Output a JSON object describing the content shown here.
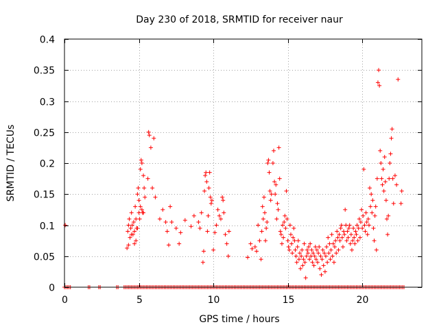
{
  "chart_data": {
    "type": "scatter",
    "title": "Day 230 of 2018, SRMTID for receiver naur",
    "xlabel": "GPS time / hours",
    "ylabel": "SRMTID / TECUs",
    "xlim": [
      0,
      24
    ],
    "ylim": [
      0,
      0.4
    ],
    "xticks": [
      0,
      5,
      10,
      15,
      20
    ],
    "xtick_labels": [
      "0",
      "5",
      "10",
      "15",
      "20"
    ],
    "yticks": [
      0,
      0.05,
      0.1,
      0.15,
      0.2,
      0.25,
      0.3,
      0.35,
      0.4
    ],
    "ytick_labels": [
      "0",
      "0.05",
      "0.1",
      "0.15",
      "0.2",
      "0.25",
      "0.3",
      "0.35",
      "0.4"
    ],
    "grid": true,
    "marker": "+",
    "color": "#ff0000",
    "series": [
      {
        "name": "SRMTID",
        "points": [
          [
            0.05,
            0.1
          ],
          [
            4.2,
            0.063
          ],
          [
            4.25,
            0.09
          ],
          [
            4.3,
            0.1
          ],
          [
            4.35,
            0.11
          ],
          [
            4.4,
            0.08
          ],
          [
            4.45,
            0.095
          ],
          [
            4.5,
            0.12
          ],
          [
            4.55,
            0.1
          ],
          [
            4.6,
            0.085
          ],
          [
            4.65,
            0.105
          ],
          [
            4.7,
            0.09
          ],
          [
            4.75,
            0.13
          ],
          [
            4.8,
            0.075
          ],
          [
            4.85,
            0.095
          ],
          [
            4.9,
            0.15
          ],
          [
            4.95,
            0.16
          ],
          [
            5.0,
            0.14
          ],
          [
            5.05,
            0.11
          ],
          [
            5.1,
            0.19
          ],
          [
            5.15,
            0.205
          ],
          [
            5.2,
            0.2
          ],
          [
            5.25,
            0.12
          ],
          [
            5.3,
            0.18
          ],
          [
            5.35,
            0.16
          ],
          [
            5.4,
            0.145
          ],
          [
            5.2,
            0.125
          ],
          [
            5.1,
            0.13
          ],
          [
            5.0,
            0.12
          ],
          [
            4.9,
            0.095
          ],
          [
            4.7,
            0.07
          ],
          [
            4.5,
            0.085
          ],
          [
            4.3,
            0.068
          ],
          [
            4.8,
            0.11
          ],
          [
            5.3,
            0.12
          ],
          [
            5.6,
            0.175
          ],
          [
            5.65,
            0.25
          ],
          [
            5.7,
            0.245
          ],
          [
            5.8,
            0.225
          ],
          [
            5.9,
            0.16
          ],
          [
            6.0,
            0.24
          ],
          [
            6.1,
            0.145
          ],
          [
            6.4,
            0.11
          ],
          [
            6.6,
            0.125
          ],
          [
            6.8,
            0.105
          ],
          [
            6.9,
            0.09
          ],
          [
            7.0,
            0.068
          ],
          [
            7.1,
            0.13
          ],
          [
            7.2,
            0.105
          ],
          [
            7.5,
            0.095
          ],
          [
            7.7,
            0.07
          ],
          [
            7.8,
            0.088
          ],
          [
            8.1,
            0.108
          ],
          [
            8.5,
            0.098
          ],
          [
            8.7,
            0.115
          ],
          [
            9.0,
            0.105
          ],
          [
            9.1,
            0.095
          ],
          [
            9.2,
            0.12
          ],
          [
            9.3,
            0.04
          ],
          [
            9.35,
            0.058
          ],
          [
            9.4,
            0.155
          ],
          [
            9.45,
            0.18
          ],
          [
            9.5,
            0.185
          ],
          [
            9.55,
            0.17
          ],
          [
            9.6,
            0.09
          ],
          [
            9.65,
            0.115
          ],
          [
            9.7,
            0.16
          ],
          [
            9.75,
            0.185
          ],
          [
            9.8,
            0.145
          ],
          [
            9.85,
            0.135
          ],
          [
            9.9,
            0.14
          ],
          [
            10.0,
            0.06
          ],
          [
            10.1,
            0.088
          ],
          [
            10.2,
            0.1
          ],
          [
            10.3,
            0.125
          ],
          [
            10.4,
            0.115
          ],
          [
            10.5,
            0.11
          ],
          [
            10.6,
            0.145
          ],
          [
            10.65,
            0.14
          ],
          [
            10.7,
            0.12
          ],
          [
            10.8,
            0.085
          ],
          [
            10.9,
            0.07
          ],
          [
            11.0,
            0.05
          ],
          [
            11.05,
            0.09
          ],
          [
            12.3,
            0.048
          ],
          [
            12.5,
            0.07
          ],
          [
            12.6,
            0.062
          ],
          [
            12.8,
            0.065
          ],
          [
            12.9,
            0.058
          ],
          [
            13.0,
            0.1
          ],
          [
            13.1,
            0.075
          ],
          [
            13.2,
            0.045
          ],
          [
            13.25,
            0.09
          ],
          [
            13.3,
            0.13
          ],
          [
            13.35,
            0.11
          ],
          [
            13.4,
            0.145
          ],
          [
            13.45,
            0.12
          ],
          [
            13.5,
            0.075
          ],
          [
            13.55,
            0.095
          ],
          [
            13.6,
            0.105
          ],
          [
            13.65,
            0.2
          ],
          [
            13.7,
            0.205
          ],
          [
            13.75,
            0.185
          ],
          [
            13.8,
            0.155
          ],
          [
            13.85,
            0.14
          ],
          [
            13.9,
            0.15
          ],
          [
            14.0,
            0.2
          ],
          [
            14.05,
            0.22
          ],
          [
            14.1,
            0.17
          ],
          [
            14.15,
            0.15
          ],
          [
            14.2,
            0.165
          ],
          [
            14.25,
            0.11
          ],
          [
            14.3,
            0.135
          ],
          [
            14.35,
            0.125
          ],
          [
            14.4,
            0.225
          ],
          [
            14.45,
            0.175
          ],
          [
            14.5,
            0.09
          ],
          [
            14.55,
            0.085
          ],
          [
            14.6,
            0.07
          ],
          [
            14.65,
            0.1
          ],
          [
            14.7,
            0.08
          ],
          [
            14.75,
            0.105
          ],
          [
            14.8,
            0.115
          ],
          [
            14.85,
            0.095
          ],
          [
            14.9,
            0.155
          ],
          [
            14.95,
            0.11
          ],
          [
            15.0,
            0.075
          ],
          [
            15.05,
            0.065
          ],
          [
            15.1,
            0.06
          ],
          [
            15.15,
            0.1
          ],
          [
            15.2,
            0.085
          ],
          [
            15.25,
            0.07
          ],
          [
            15.3,
            0.055
          ],
          [
            15.35,
            0.08
          ],
          [
            15.4,
            0.095
          ],
          [
            15.45,
            0.075
          ],
          [
            15.5,
            0.06
          ],
          [
            15.55,
            0.05
          ],
          [
            15.6,
            0.04
          ],
          [
            15.65,
            0.065
          ],
          [
            15.7,
            0.075
          ],
          [
            15.75,
            0.045
          ],
          [
            15.8,
            0.055
          ],
          [
            15.85,
            0.03
          ],
          [
            15.9,
            0.05
          ],
          [
            15.95,
            0.06
          ],
          [
            16.0,
            0.035
          ],
          [
            16.05,
            0.045
          ],
          [
            16.1,
            0.07
          ],
          [
            16.15,
            0.04
          ],
          [
            16.2,
            0.015
          ],
          [
            16.25,
            0.05
          ],
          [
            16.3,
            0.06
          ],
          [
            16.35,
            0.055
          ],
          [
            16.4,
            0.065
          ],
          [
            16.45,
            0.045
          ],
          [
            16.5,
            0.07
          ],
          [
            16.55,
            0.05
          ],
          [
            16.6,
            0.06
          ],
          [
            16.65,
            0.04
          ],
          [
            16.7,
            0.055
          ],
          [
            16.75,
            0.035
          ],
          [
            16.8,
            0.05
          ],
          [
            16.85,
            0.065
          ],
          [
            16.9,
            0.045
          ],
          [
            16.95,
            0.06
          ],
          [
            17.0,
            0.04
          ],
          [
            17.05,
            0.055
          ],
          [
            17.1,
            0.065
          ],
          [
            17.15,
            0.03
          ],
          [
            17.2,
            0.05
          ],
          [
            17.25,
            0.02
          ],
          [
            17.3,
            0.045
          ],
          [
            17.35,
            0.06
          ],
          [
            17.4,
            0.035
          ],
          [
            17.45,
            0.055
          ],
          [
            17.5,
            0.025
          ],
          [
            17.55,
            0.05
          ],
          [
            17.6,
            0.065
          ],
          [
            17.65,
            0.04
          ],
          [
            17.7,
            0.08
          ],
          [
            17.75,
            0.055
          ],
          [
            17.8,
            0.07
          ],
          [
            17.85,
            0.045
          ],
          [
            17.9,
            0.06
          ],
          [
            17.95,
            0.085
          ],
          [
            18.0,
            0.05
          ],
          [
            18.05,
            0.07
          ],
          [
            18.1,
            0.04
          ],
          [
            18.15,
            0.065
          ],
          [
            18.2,
            0.075
          ],
          [
            18.25,
            0.055
          ],
          [
            18.3,
            0.09
          ],
          [
            18.35,
            0.08
          ],
          [
            18.4,
            0.06
          ],
          [
            18.45,
            0.085
          ],
          [
            18.5,
            0.075
          ],
          [
            18.55,
            0.095
          ],
          [
            18.6,
            0.1
          ],
          [
            18.65,
            0.08
          ],
          [
            18.7,
            0.065
          ],
          [
            18.75,
            0.09
          ],
          [
            18.8,
            0.085
          ],
          [
            18.85,
            0.125
          ],
          [
            18.9,
            0.1
          ],
          [
            18.95,
            0.075
          ],
          [
            19.0,
            0.09
          ],
          [
            19.05,
            0.08
          ],
          [
            19.1,
            0.095
          ],
          [
            19.15,
            0.1
          ],
          [
            19.2,
            0.07
          ],
          [
            19.25,
            0.085
          ],
          [
            19.3,
            0.06
          ],
          [
            19.35,
            0.075
          ],
          [
            19.4,
            0.095
          ],
          [
            19.45,
            0.08
          ],
          [
            19.5,
            0.07
          ],
          [
            19.55,
            0.09
          ],
          [
            19.6,
            0.085
          ],
          [
            19.65,
            0.1
          ],
          [
            19.7,
            0.075
          ],
          [
            19.75,
            0.095
          ],
          [
            19.8,
            0.11
          ],
          [
            19.85,
            0.08
          ],
          [
            19.9,
            0.105
          ],
          [
            19.95,
            0.125
          ],
          [
            20.0,
            0.095
          ],
          [
            20.05,
            0.115
          ],
          [
            20.1,
            0.19
          ],
          [
            20.15,
            0.1
          ],
          [
            20.2,
            0.09
          ],
          [
            20.25,
            0.12
          ],
          [
            20.3,
            0.105
          ],
          [
            20.35,
            0.085
          ],
          [
            20.4,
            0.11
          ],
          [
            20.45,
            0.1
          ],
          [
            20.5,
            0.16
          ],
          [
            20.55,
            0.13
          ],
          [
            20.6,
            0.15
          ],
          [
            20.65,
            0.12
          ],
          [
            20.7,
            0.14
          ],
          [
            20.75,
            0.095
          ],
          [
            20.8,
            0.075
          ],
          [
            20.85,
            0.115
          ],
          [
            20.9,
            0.13
          ],
          [
            20.95,
            0.06
          ],
          [
            21.0,
            0.175
          ],
          [
            21.05,
            0.33
          ],
          [
            21.1,
            0.35
          ],
          [
            21.15,
            0.325
          ],
          [
            21.2,
            0.22
          ],
          [
            21.25,
            0.2
          ],
          [
            21.3,
            0.175
          ],
          [
            21.35,
            0.165
          ],
          [
            21.4,
            0.19
          ],
          [
            21.45,
            0.155
          ],
          [
            21.5,
            0.21
          ],
          [
            21.55,
            0.17
          ],
          [
            21.6,
            0.14
          ],
          [
            21.65,
            0.11
          ],
          [
            21.7,
            0.085
          ],
          [
            21.75,
            0.115
          ],
          [
            21.8,
            0.175
          ],
          [
            21.85,
            0.2
          ],
          [
            21.9,
            0.215
          ],
          [
            21.95,
            0.24
          ],
          [
            22.0,
            0.255
          ],
          [
            22.05,
            0.175
          ],
          [
            22.1,
            0.135
          ],
          [
            22.2,
            0.18
          ],
          [
            22.3,
            0.165
          ],
          [
            22.4,
            0.335
          ],
          [
            22.6,
            0.135
          ],
          [
            22.65,
            0.155
          ]
        ]
      }
    ],
    "zero_band": {
      "y": 0,
      "x_ranges": [
        [
          0,
          0.4
        ],
        [
          1.6,
          1.7
        ],
        [
          2.3,
          2.4
        ],
        [
          3.5,
          3.6
        ],
        [
          4.0,
          22.8
        ]
      ]
    }
  }
}
